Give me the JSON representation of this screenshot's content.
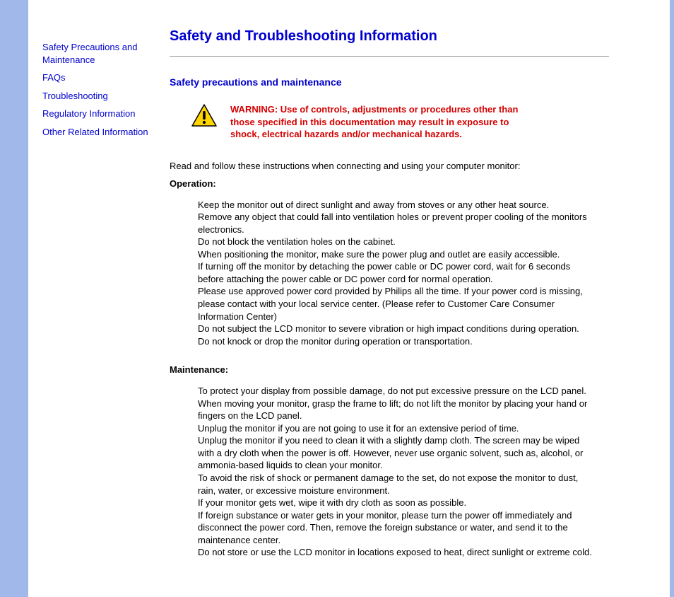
{
  "sidebar": {
    "links": [
      "Safety Precautions and Maintenance",
      "FAQs",
      "Troubleshooting",
      "Regulatory Information",
      "Other Related Information"
    ]
  },
  "main": {
    "title": "Safety and Troubleshooting Information",
    "subtitle": "Safety precautions and maintenance",
    "warning": "WARNING: Use of controls, adjustments or procedures other than those specified in this documentation may result in exposure to shock, electrical hazards and/or mechanical hazards.",
    "intro": "Read and follow these instructions when connecting and using your computer monitor:",
    "operation_label": "Operation:",
    "operation_items": [
      "Keep the monitor out of direct sunlight and away from stoves or any other heat source.",
      "Remove any object that could fall into ventilation holes or prevent proper cooling of the monitors electronics.",
      "Do not block the ventilation holes on the cabinet.",
      "When positioning the monitor, make sure the power plug and outlet are easily accessible.",
      "If turning off the monitor by detaching the power cable or DC power cord, wait for 6 seconds before attaching the power cable or DC power cord for normal operation.",
      "Please use approved power cord provided by Philips all the time. If your power cord is missing, please contact with your local service center. (Please refer to Customer Care Consumer Information Center)",
      "Do not subject the LCD monitor to severe vibration or high impact conditions during operation.",
      "Do not knock or drop the monitor during operation or transportation."
    ],
    "maintenance_label": "Maintenance:",
    "maintenance_items": [
      "To protect your display from possible damage, do not put excessive pressure on the LCD panel. When moving your monitor, grasp the frame to lift; do not lift the monitor by placing your hand or fingers on the LCD panel.",
      "Unplug the monitor if you are not going to use it for an extensive period of time.",
      "Unplug the monitor if you need to clean it with a slightly damp cloth. The screen may be wiped with a dry cloth when the power is off. However, never use organic solvent, such as, alcohol, or ammonia-based liquids to clean your monitor.",
      "To avoid the risk of shock or permanent damage to the set, do not expose the monitor to dust, rain, water, or excessive moisture environment.",
      "If your monitor gets wet, wipe it with dry cloth as soon as possible.",
      "If foreign substance or water gets in your monitor, please turn the power off immediately and disconnect the power cord. Then, remove the foreign substance or water, and send it to the maintenance center.",
      "Do not store or use the LCD monitor in locations exposed to heat, direct sunlight or extreme cold."
    ]
  },
  "colors": {
    "sidebar_bar": "#a1b8ea",
    "link": "#0000cc",
    "heading": "#0000d0",
    "warning": "#d40000"
  }
}
